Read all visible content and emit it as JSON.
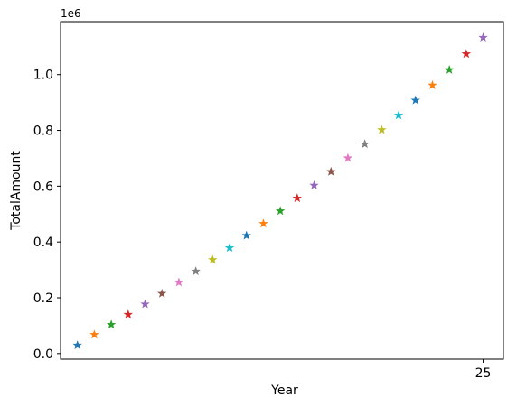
{
  "chart_data": {
    "type": "scatter",
    "title": "",
    "xlabel": "Year",
    "ylabel": "TotalAmount",
    "y_offset_label": "1e6",
    "xlim": [
      0,
      26.2
    ],
    "ylim": [
      -0.02,
      1.19
    ],
    "x_ticks": [
      {
        "value": 25,
        "label": "25"
      }
    ],
    "y_ticks": [
      {
        "value": 0.0,
        "label": "0.0"
      },
      {
        "value": 0.2,
        "label": "0.2"
      },
      {
        "value": 0.4,
        "label": "0.4"
      },
      {
        "value": 0.6,
        "label": "0.6"
      },
      {
        "value": 0.8,
        "label": "0.8"
      },
      {
        "value": 1.0,
        "label": "1.0"
      }
    ],
    "marker": "star",
    "grid": false,
    "legend": "none",
    "palette": [
      "#1f77b4",
      "#ff7f0e",
      "#2ca02c",
      "#d62728",
      "#9467bd",
      "#8c564b",
      "#e377c2",
      "#7f7f7f",
      "#bcbd22",
      "#17becf"
    ],
    "x": [
      1,
      2,
      3,
      4,
      5,
      6,
      7,
      8,
      9,
      10,
      11,
      12,
      13,
      14,
      15,
      16,
      17,
      18,
      19,
      20,
      21,
      22,
      23,
      24,
      25
    ],
    "y": [
      0.03,
      0.068,
      0.104,
      0.14,
      0.177,
      0.215,
      0.255,
      0.295,
      0.336,
      0.379,
      0.423,
      0.466,
      0.511,
      0.557,
      0.603,
      0.652,
      0.701,
      0.751,
      0.802,
      0.854,
      0.908,
      0.962,
      1.017,
      1.074,
      1.133
    ]
  }
}
